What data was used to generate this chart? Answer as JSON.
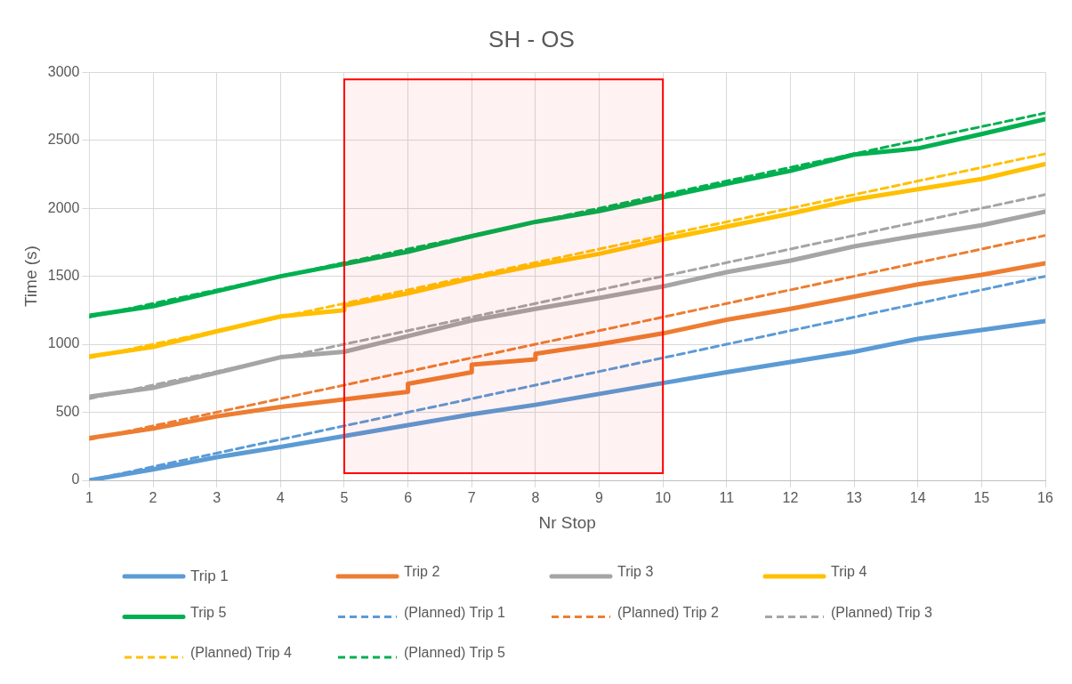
{
  "chart_data": {
    "type": "line",
    "title": "SH - OS",
    "xlabel": "Nr Stop",
    "ylabel": "Time (s)",
    "xlim": [
      1,
      16
    ],
    "xticks": [
      1,
      2,
      3,
      4,
      5,
      6,
      7,
      8,
      9,
      10,
      11,
      12,
      13,
      14,
      15,
      16
    ],
    "ylim": [
      0,
      3000
    ],
    "yticks": [
      0,
      500,
      1000,
      1500,
      2000,
      2500,
      3000
    ],
    "grid": true,
    "legend": "bottom",
    "marker": "none",
    "bands": [
      {
        "axis": "x",
        "from": 5,
        "to": 10,
        "color": "#ff0000"
      }
    ],
    "series": [
      {
        "name": "Trip 1",
        "color": "#5b9bd5",
        "line_style": "solid",
        "x": [
          1,
          2,
          3,
          4,
          5,
          6,
          7,
          8,
          9,
          10,
          11,
          12,
          13,
          14,
          15,
          16
        ],
        "values": [
          0,
          80,
          170,
          245,
          325,
          405,
          485,
          555,
          635,
          715,
          795,
          870,
          945,
          1040,
          1105,
          1170
        ]
      },
      {
        "name": "Trip 2",
        "color": "#ed7d31",
        "line_style": "solid",
        "x": [
          1,
          2,
          3,
          4,
          5,
          6,
          6,
          7,
          7,
          8,
          8,
          9,
          10,
          11,
          12,
          13,
          14,
          15,
          16
        ],
        "values": [
          310,
          380,
          470,
          540,
          595,
          650,
          710,
          795,
          850,
          890,
          930,
          1000,
          1080,
          1180,
          1260,
          1350,
          1440,
          1510,
          1595
        ]
      },
      {
        "name": "Trip 3",
        "color": "#a5a5a5",
        "line_style": "solid",
        "x": [
          1,
          2,
          3,
          4,
          5,
          6,
          7,
          8,
          9,
          10,
          11,
          12,
          13,
          14,
          15,
          16
        ],
        "values": [
          615,
          680,
          790,
          905,
          945,
          1060,
          1175,
          1260,
          1340,
          1425,
          1530,
          1615,
          1720,
          1800,
          1875,
          1975
        ]
      },
      {
        "name": "Trip 4",
        "color": "#ffc000",
        "line_style": "solid",
        "x": [
          1,
          2,
          3,
          4,
          5,
          5,
          6,
          7,
          8,
          9,
          10,
          11,
          12,
          13,
          14,
          15,
          16
        ],
        "values": [
          910,
          980,
          1095,
          1205,
          1250,
          1285,
          1375,
          1485,
          1580,
          1665,
          1770,
          1865,
          1960,
          2065,
          2140,
          2215,
          2325
        ]
      },
      {
        "name": "Trip 5",
        "color": "#00b050",
        "line_style": "solid",
        "x": [
          1,
          2,
          3,
          4,
          5,
          6,
          7,
          8,
          9,
          10,
          11,
          12,
          13,
          14,
          15,
          16
        ],
        "values": [
          1210,
          1280,
          1390,
          1500,
          1590,
          1680,
          1795,
          1900,
          1980,
          2080,
          2180,
          2275,
          2395,
          2440,
          2545,
          2655
        ]
      },
      {
        "name": "(Planned) Trip 1",
        "color": "#5b9bd5",
        "line_style": "dashed",
        "x": [
          1,
          2,
          3,
          4,
          5,
          6,
          7,
          8,
          9,
          10,
          11,
          12,
          13,
          14,
          15,
          16
        ],
        "values": [
          0,
          100,
          200,
          300,
          400,
          500,
          600,
          700,
          800,
          900,
          1000,
          1100,
          1200,
          1300,
          1400,
          1500
        ]
      },
      {
        "name": "(Planned) Trip 2",
        "color": "#ed7d31",
        "line_style": "dashed",
        "x": [
          1,
          2,
          3,
          4,
          5,
          6,
          7,
          8,
          9,
          10,
          11,
          12,
          13,
          14,
          15,
          16
        ],
        "values": [
          300,
          400,
          500,
          600,
          700,
          800,
          900,
          1000,
          1100,
          1200,
          1300,
          1400,
          1500,
          1600,
          1700,
          1800
        ]
      },
      {
        "name": "(Planned) Trip 3",
        "color": "#a5a5a5",
        "line_style": "dashed",
        "x": [
          1,
          2,
          3,
          4,
          5,
          6,
          7,
          8,
          9,
          10,
          11,
          12,
          13,
          14,
          15,
          16
        ],
        "values": [
          600,
          700,
          800,
          900,
          1000,
          1100,
          1200,
          1300,
          1400,
          1500,
          1600,
          1700,
          1800,
          1900,
          2000,
          2100
        ]
      },
      {
        "name": "(Planned) Trip 4",
        "color": "#ffc000",
        "line_style": "dashed",
        "x": [
          1,
          2,
          3,
          4,
          5,
          6,
          7,
          8,
          9,
          10,
          11,
          12,
          13,
          14,
          15,
          16
        ],
        "values": [
          900,
          1000,
          1100,
          1200,
          1300,
          1400,
          1500,
          1600,
          1700,
          1800,
          1900,
          2000,
          2100,
          2200,
          2300,
          2400
        ]
      },
      {
        "name": "(Planned) Trip 5",
        "color": "#00b050",
        "line_style": "dashed",
        "x": [
          1,
          2,
          3,
          4,
          5,
          6,
          7,
          8,
          9,
          10,
          11,
          12,
          13,
          14,
          15,
          16
        ],
        "values": [
          1200,
          1300,
          1400,
          1500,
          1600,
          1700,
          1800,
          1900,
          2000,
          2100,
          2200,
          2300,
          2400,
          2500,
          2600,
          2700
        ]
      }
    ]
  }
}
